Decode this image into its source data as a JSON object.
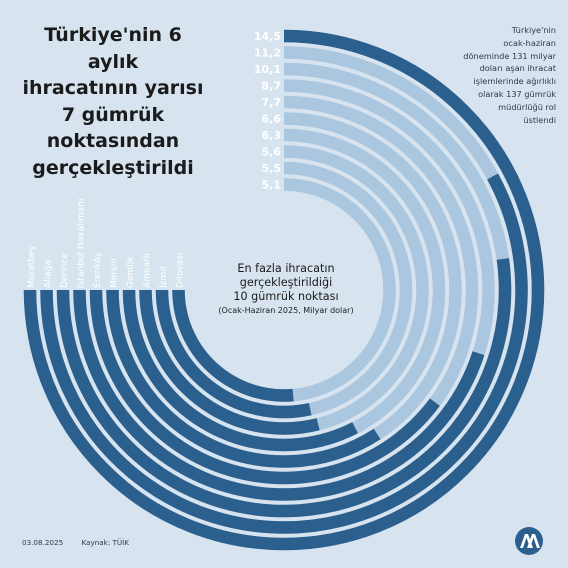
{
  "header": {
    "title_lines": [
      "Türkiye'nin 6 aylık",
      "ihracatının yarısı",
      "7 gümrük",
      "noktasından",
      "gerçekleştirildi"
    ]
  },
  "note_lines": [
    "Türkiye'nin",
    "ocak-haziran",
    "döneminde 131 milyar",
    "doları aşan ihracat",
    "işlemlerinde ağırlıklı",
    "olarak 137 gümrük",
    "müdürlüğü rol",
    "üstlendi"
  ],
  "center": {
    "title_lines": [
      "En fazla ihracatın",
      "gerçekleştirildiği",
      "10 gümrük noktası"
    ],
    "subtitle": "(Ocak-Haziran 2025, Milyar dolar)"
  },
  "footer": {
    "date": "03.08.2025",
    "source": "Kaynak: TÜİK"
  },
  "logo": {
    "name": "aa-logo-icon"
  },
  "colors": {
    "background": "#d7e4ef",
    "bar": "#2b5f8e",
    "track": "#aac7df"
  },
  "chart_data": {
    "type": "radial-bar",
    "categories": [
      "Muratbey",
      "Aliağa",
      "Derince",
      "İstanbul Havalimanı",
      "Erenköy",
      "Mersin",
      "Gemlik",
      "Ambarlı",
      "İzmit",
      "Dilovası"
    ],
    "values": [
      14.5,
      11.2,
      10.1,
      8.7,
      7.7,
      6.6,
      6.3,
      5.6,
      5.5,
      5.1
    ],
    "value_labels": [
      "14,5",
      "11,2",
      "10,1",
      "8,7",
      "7,7",
      "6,6",
      "6,3",
      "5,6",
      "5,5",
      "5,1"
    ],
    "max": 14.5,
    "title": "En fazla ihracatın gerçekleştirildiği 10 gümrük noktası",
    "subtitle": "(Ocak-Haziran 2025, Milyar dolar)"
  }
}
